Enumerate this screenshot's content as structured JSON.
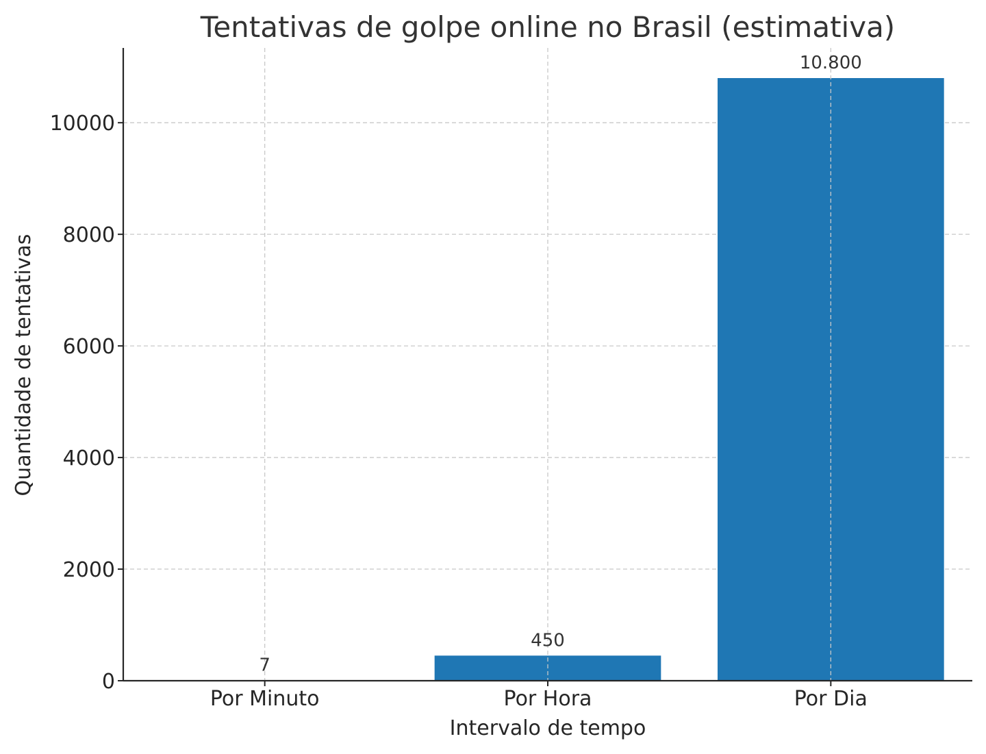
{
  "chart_data": {
    "type": "bar",
    "title": "Tentativas de golpe online no Brasil (estimativa)",
    "xlabel": "Intervalo de tempo",
    "ylabel": "Quantidade de tentativas",
    "categories": [
      "Por Minuto",
      "Por Hora",
      "Por Dia"
    ],
    "values": [
      7,
      450,
      10800
    ],
    "data_labels": [
      "7",
      "450",
      "10.800"
    ],
    "ylim": [
      0,
      11340
    ],
    "yticks": [
      0,
      2000,
      4000,
      6000,
      8000,
      10000
    ],
    "grid": true,
    "bar_color": "#1f77b4"
  }
}
